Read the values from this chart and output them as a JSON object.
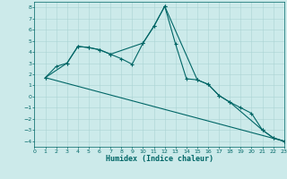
{
  "xlabel": "Humidex (Indice chaleur)",
  "bg_color": "#cceaea",
  "grid_color": "#aad4d4",
  "line_color": "#006666",
  "xlim": [
    0,
    23
  ],
  "ylim": [
    -4.5,
    8.5
  ],
  "xticks": [
    0,
    1,
    2,
    3,
    4,
    5,
    6,
    7,
    8,
    9,
    10,
    11,
    12,
    13,
    14,
    15,
    16,
    17,
    18,
    19,
    20,
    21,
    22,
    23
  ],
  "yticks": [
    -4,
    -3,
    -2,
    -1,
    0,
    1,
    2,
    3,
    4,
    5,
    6,
    7,
    8
  ],
  "series1_x": [
    1,
    2,
    3,
    4,
    5,
    6,
    7,
    8,
    9,
    10,
    11,
    12,
    13,
    14,
    15,
    16,
    17,
    18,
    19,
    20,
    21,
    22,
    23
  ],
  "series1_y": [
    1.7,
    2.7,
    3.0,
    4.5,
    4.4,
    4.2,
    3.8,
    3.4,
    2.9,
    4.8,
    6.3,
    8.1,
    4.7,
    1.6,
    1.5,
    1.1,
    0.1,
    -0.5,
    -1.0,
    -1.5,
    -3.0,
    -3.7,
    -4.0
  ],
  "series2_x": [
    1,
    3,
    4,
    5,
    6,
    7,
    10,
    11,
    12,
    15,
    16,
    17,
    18,
    21,
    22,
    23
  ],
  "series2_y": [
    1.7,
    3.0,
    4.5,
    4.4,
    4.2,
    3.8,
    4.8,
    6.3,
    8.1,
    1.5,
    1.1,
    0.1,
    -0.5,
    -3.0,
    -3.7,
    -4.0
  ],
  "series3_x": [
    1,
    23
  ],
  "series3_y": [
    1.7,
    -4.0
  ]
}
